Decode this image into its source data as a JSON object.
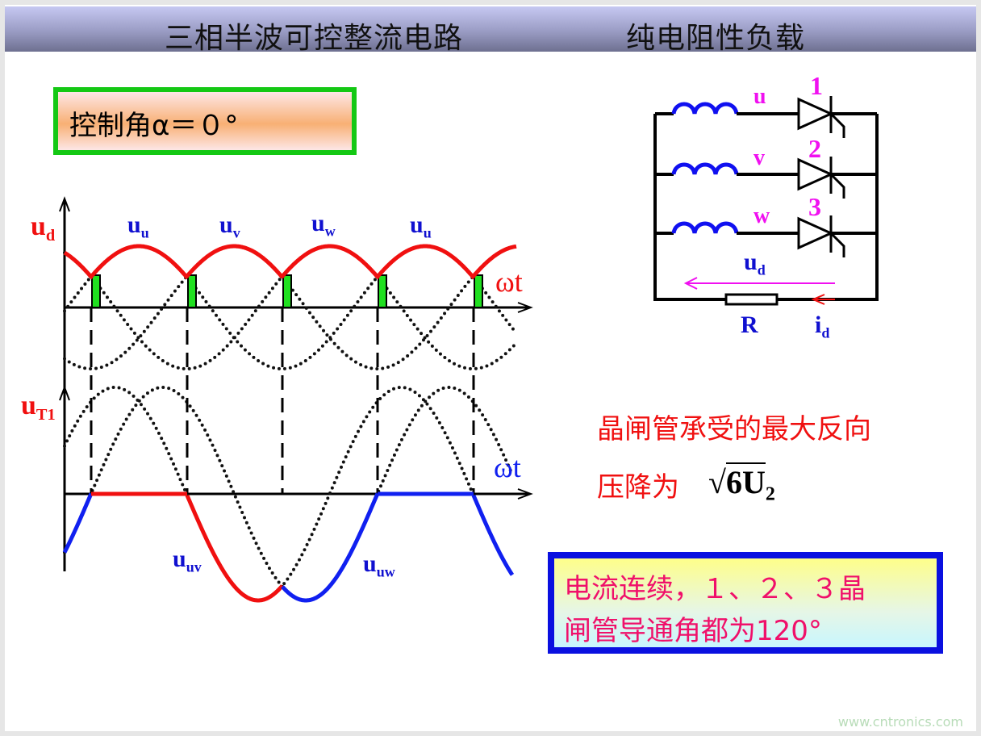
{
  "header": {
    "title": "三相半波可控整流电路",
    "subtitle": "纯电阻性负载"
  },
  "control_angle": {
    "text": "控制角α＝０°"
  },
  "waveform": {
    "upper_axis_label": "u",
    "upper_axis_sub": "d",
    "upper_x_label": "ωt",
    "phase_labels": [
      {
        "main": "u",
        "sub": "u"
      },
      {
        "main": "u",
        "sub": "v"
      },
      {
        "main": "u",
        "sub": "w"
      },
      {
        "main": "u",
        "sub": "u"
      }
    ],
    "lower_axis_label": "u",
    "lower_axis_sub": "T1",
    "lower_x_label": "ωt",
    "line_labels": [
      {
        "main": "u",
        "sub": "uv"
      },
      {
        "main": "u",
        "sub": "uw"
      }
    ]
  },
  "circuit": {
    "phases": [
      "u",
      "v",
      "w"
    ],
    "thyristors": [
      "1",
      "2",
      "3"
    ],
    "output_voltage": {
      "main": "u",
      "sub": "d"
    },
    "resistor": "R",
    "current": {
      "main": "i",
      "sub": "d"
    }
  },
  "reverse_voltage": {
    "line1": "晶闸管承受的最大反向",
    "line2": "压降为",
    "formula_num": "6U",
    "formula_sub": "2"
  },
  "note": {
    "line1": "电流连续，１、２、３晶",
    "line2": "闸管导通角都为120°"
  },
  "watermark": "www.cntronics.com",
  "colors": {
    "ud": "#f01010",
    "uT1_red": "#f01010",
    "uT1_blue": "#1020f0",
    "gate_pulse": "#20e020",
    "inductor": "#1010f0",
    "label_magenta": "#f010f0",
    "label_blue": "#1010d0"
  }
}
